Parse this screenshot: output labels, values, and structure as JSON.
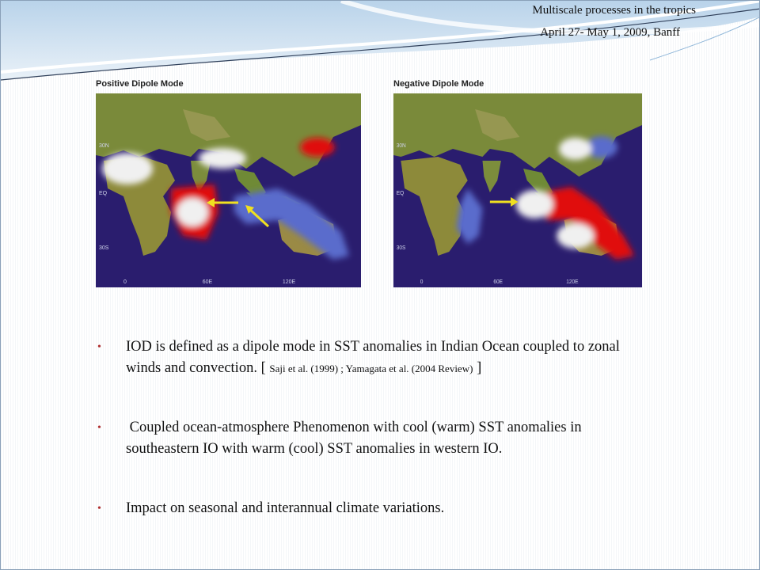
{
  "header": {
    "title": "Multiscale processes in the tropics",
    "subtitle": "April 27- May 1, 2009, Banff"
  },
  "figures": [
    {
      "title": "Positive Dipole Mode",
      "lat_labels": [
        "30N",
        "EQ",
        "30S"
      ],
      "lon_labels": [
        "0",
        "60E",
        "120E"
      ]
    },
    {
      "title": "Negative Dipole Mode",
      "lat_labels": [
        "30N",
        "EQ",
        "30S"
      ],
      "lon_labels": [
        "0",
        "60E",
        "120E"
      ]
    }
  ],
  "bullets": [
    {
      "parts": [
        "IOD is defined as a dipole mode in SST anomalies in Indian Ocean coupled to zonal winds and convection. [ ",
        "Saji et al. (1999) ; Yamagata et al. (2004 Review)",
        " ]"
      ]
    },
    {
      "parts": [
        " Coupled ocean-atmosphere Phenomenon with cool (warm) SST anomalies in southeastern IO with warm (cool) SST anomalies in western IO."
      ]
    },
    {
      "parts": [
        "Impact on seasonal and interannual climate variations."
      ]
    }
  ]
}
